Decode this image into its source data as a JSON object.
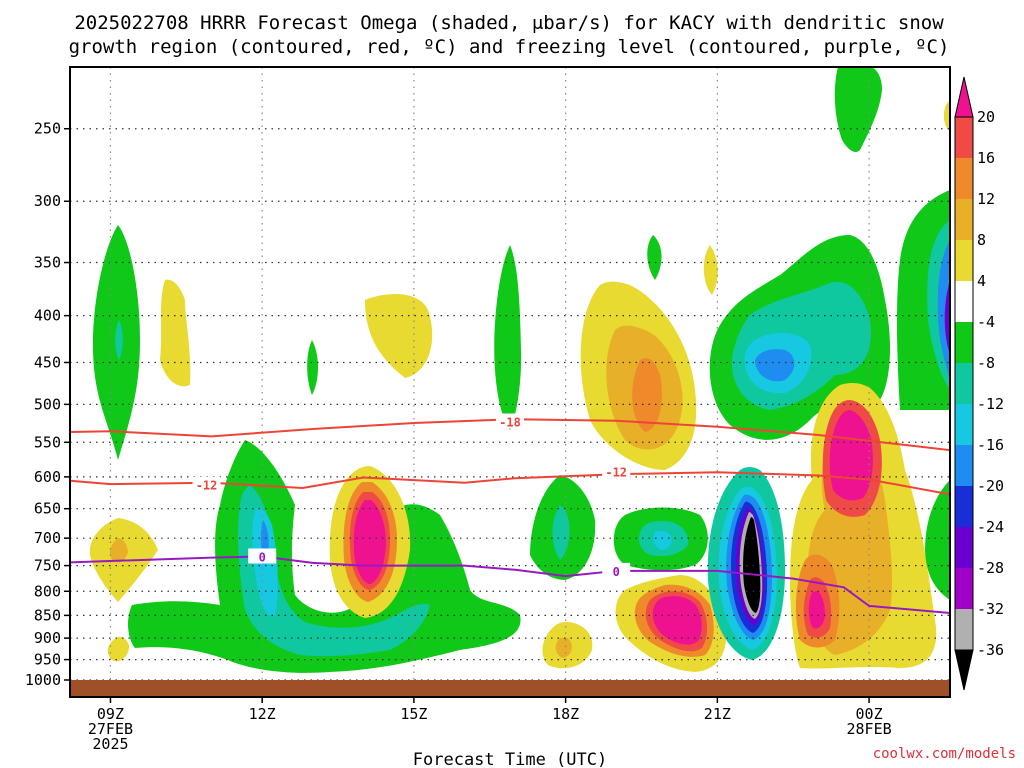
{
  "title": {
    "line1": "2025022708 HRRR Forecast Omega (shaded, μbar/s) for KACY with dendritic snow",
    "line2": "growth region (contoured, red, ºC) and freezing level (contoured, purple, ºC)"
  },
  "xlabel": "Forecast Time (UTC)",
  "credit": "coolwx.com/models",
  "chart_data": {
    "type": "heatmap",
    "x_axis": {
      "range_hours_after_09Z": [
        -0.8,
        16.6
      ],
      "ticks": [
        {
          "hour": 0,
          "label": "09Z",
          "sub1": "27FEB",
          "sub2": "2025"
        },
        {
          "hour": 3,
          "label": "12Z",
          "sub1": "",
          "sub2": ""
        },
        {
          "hour": 6,
          "label": "15Z",
          "sub1": "",
          "sub2": ""
        },
        {
          "hour": 9,
          "label": "18Z",
          "sub1": "",
          "sub2": ""
        },
        {
          "hour": 12,
          "label": "21Z",
          "sub1": "",
          "sub2": ""
        },
        {
          "hour": 15,
          "label": "00Z",
          "sub1": "28FEB",
          "sub2": ""
        }
      ]
    },
    "y_axis": {
      "unit": "hPa",
      "scale": "log",
      "range": [
        1000,
        200
      ],
      "ticks": [
        250,
        300,
        350,
        400,
        450,
        500,
        550,
        600,
        650,
        700,
        750,
        800,
        850,
        900,
        950,
        1000
      ]
    },
    "colorbar": {
      "labels": [
        20,
        16,
        12,
        8,
        4,
        -4,
        -8,
        -12,
        -16,
        -20,
        -24,
        -28,
        -32,
        -36
      ],
      "colors": [
        "#000000",
        "#b0b0b0",
        "#a000c8",
        "#6a00d0",
        "#1a2ed8",
        "#1e8cf0",
        "#16c8e0",
        "#10c8a0",
        "#0fc818",
        "#ffffff",
        "#e8da30",
        "#e8b028",
        "#ee8a2a",
        "#f04a46",
        "#ee1290"
      ]
    },
    "omega_features": [
      {
        "x": 0.0,
        "p": 420,
        "value": -12,
        "note": "ascent"
      },
      {
        "x": 3.0,
        "p": 700,
        "value": -16,
        "note": "ascent"
      },
      {
        "x": 4.0,
        "p": 715,
        "value": 20,
        "note": "descent max"
      },
      {
        "x": 4.9,
        "p": 405,
        "value": 5,
        "note": "descent"
      },
      {
        "x": 9.0,
        "p": 700,
        "value": -10,
        "note": "ascent"
      },
      {
        "x": 10.8,
        "p": 480,
        "value": 14,
        "note": "descent"
      },
      {
        "x": 12.0,
        "p": 860,
        "value": 20,
        "note": "descent max"
      },
      {
        "x": 13.0,
        "p": 760,
        "value": -36,
        "note": "strong ascent"
      },
      {
        "x": 13.1,
        "p": 445,
        "value": -22,
        "note": "ascent"
      },
      {
        "x": 14.9,
        "p": 530,
        "value": 20,
        "note": "descent max"
      },
      {
        "x": 16.5,
        "p": 390,
        "value": -30,
        "note": "ascent"
      }
    ],
    "contours": [
      {
        "name": "dgz_top",
        "label": "-18",
        "color": "#ee4438",
        "points": [
          [
            -0.8,
            536
          ],
          [
            0,
            535
          ],
          [
            2,
            542
          ],
          [
            4,
            532
          ],
          [
            6,
            524
          ],
          [
            8,
            519
          ],
          [
            10,
            521
          ],
          [
            12,
            529
          ],
          [
            14,
            540
          ],
          [
            16,
            556
          ],
          [
            16.6,
            561
          ]
        ]
      },
      {
        "name": "dgz_bottom",
        "label": "-12",
        "color": "#ee4438",
        "points": [
          [
            -0.8,
            606
          ],
          [
            0,
            611
          ],
          [
            2,
            609
          ],
          [
            3.8,
            617
          ],
          [
            5,
            601
          ],
          [
            7,
            609
          ],
          [
            8,
            602
          ],
          [
            10,
            596
          ],
          [
            12,
            593
          ],
          [
            14,
            598
          ],
          [
            15,
            604
          ],
          [
            16.6,
            627
          ]
        ]
      },
      {
        "name": "freezing_level",
        "label": "0",
        "color": "#9a18c0",
        "points": [
          [
            -0.8,
            744
          ],
          [
            2,
            735
          ],
          [
            3,
            733
          ],
          [
            4,
            745
          ],
          [
            5,
            750
          ],
          [
            7,
            750
          ],
          [
            8,
            758
          ],
          [
            9,
            770
          ],
          [
            10,
            760
          ],
          [
            12,
            760
          ],
          [
            13.5,
            775
          ],
          [
            14.5,
            792
          ],
          [
            15,
            830
          ],
          [
            16.6,
            845
          ]
        ]
      }
    ],
    "contour_labels": [
      {
        "text": "-18",
        "x": 7.9,
        "p": 522,
        "color": "#ee4438"
      },
      {
        "text": "-12",
        "x": 1.9,
        "p": 612,
        "color": "#ee4438"
      },
      {
        "text": "-12",
        "x": 10.0,
        "p": 592,
        "color": "#ee4438"
      },
      {
        "text": "0",
        "x": 3.0,
        "p": 733,
        "color": "#9a18c0"
      },
      {
        "text": "0",
        "x": 10.0,
        "p": 760,
        "color": "#9a18c0"
      }
    ],
    "ground": {
      "from_p": 1000,
      "color": "#a05028"
    }
  }
}
